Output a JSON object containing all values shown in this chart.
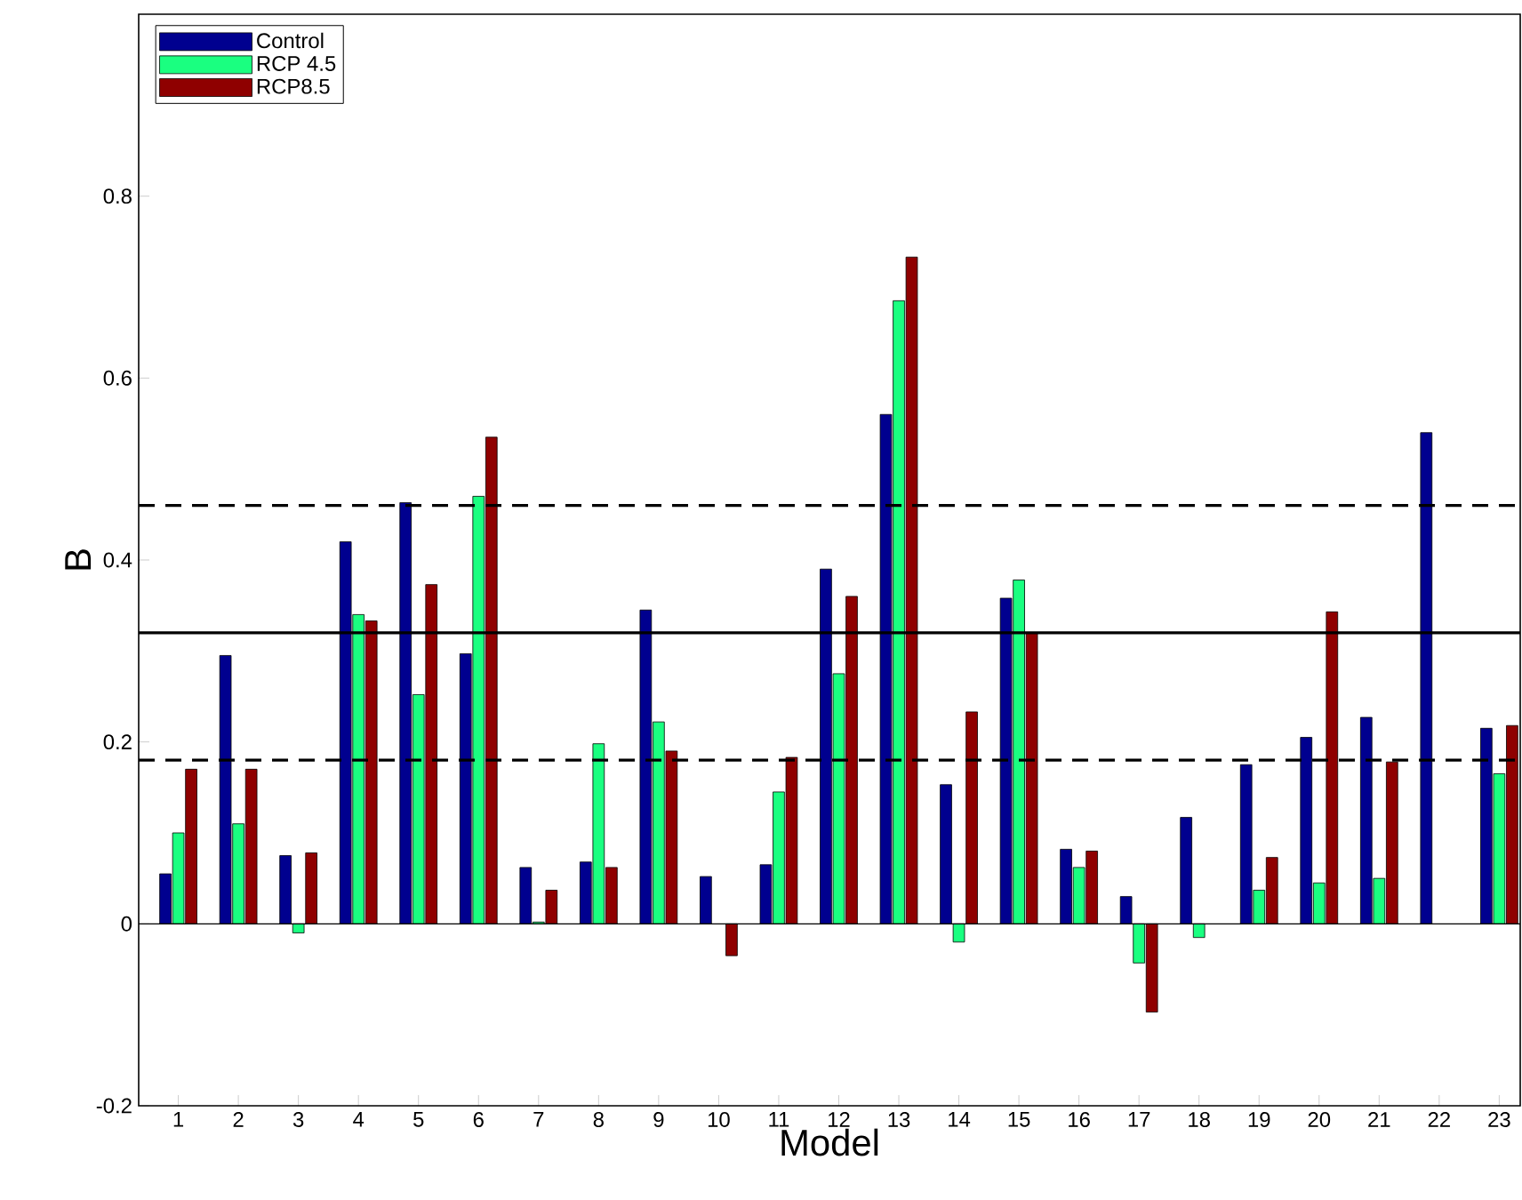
{
  "chart_data": {
    "type": "bar",
    "xlabel": "Model",
    "ylabel": "B",
    "categories": [
      "1",
      "2",
      "3",
      "4",
      "5",
      "6",
      "7",
      "8",
      "9",
      "10",
      "11",
      "12",
      "13",
      "14",
      "15",
      "16",
      "17",
      "18",
      "19",
      "20",
      "21",
      "22",
      "23"
    ],
    "series": [
      {
        "name": "Control",
        "color": "#00008f",
        "values": [
          0.055,
          0.295,
          0.075,
          0.42,
          0.463,
          0.297,
          0.062,
          0.068,
          0.345,
          0.052,
          0.065,
          0.39,
          0.56,
          0.153,
          0.358,
          0.082,
          0.03,
          0.117,
          0.175,
          0.205,
          0.227,
          0.54,
          0.215
        ]
      },
      {
        "name": "RCP 4.5",
        "color": "#1aff80",
        "values": [
          0.1,
          0.11,
          -0.01,
          0.34,
          0.252,
          0.47,
          0.002,
          0.198,
          0.222,
          null,
          0.145,
          0.275,
          0.685,
          -0.02,
          0.378,
          0.062,
          -0.043,
          -0.015,
          0.037,
          0.045,
          0.05,
          null,
          0.165
        ]
      },
      {
        "name": "RCP8.5",
        "color": "#8f0000",
        "values": [
          0.17,
          0.17,
          0.078,
          0.333,
          0.373,
          0.535,
          0.037,
          0.062,
          0.19,
          -0.035,
          0.183,
          0.36,
          0.733,
          0.233,
          0.32,
          0.08,
          -0.097,
          null,
          0.073,
          0.343,
          0.178,
          null,
          0.218
        ]
      }
    ],
    "ylim": [
      -0.2,
      1.0
    ],
    "yticks": [
      -0.2,
      0,
      0.2,
      0.4,
      0.6,
      0.8
    ],
    "ref_lines": [
      {
        "axis": "y",
        "value": 0.32,
        "line_style": "solid"
      },
      {
        "axis": "y",
        "value": 0.46,
        "line_style": "dashed"
      },
      {
        "axis": "y",
        "value": 0.18,
        "line_style": "dashed"
      },
      {
        "axis": "y",
        "value": 0,
        "line_style": "solid",
        "color": "#000000"
      }
    ],
    "legend": "top left",
    "grid": false
  }
}
